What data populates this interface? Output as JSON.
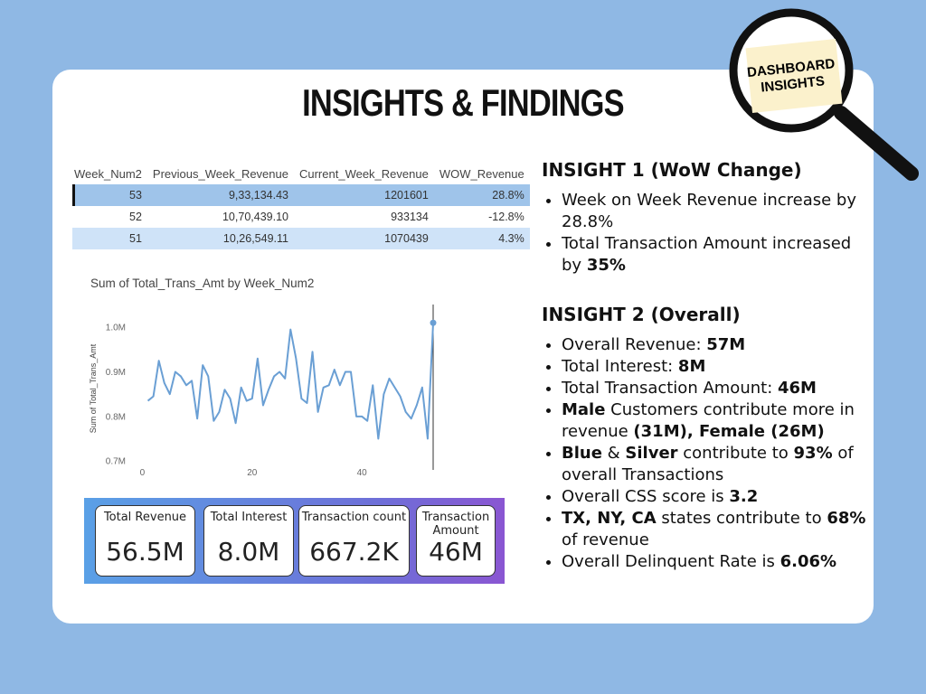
{
  "badge": {
    "line1": "DASHBOARD",
    "line2": "INSIGHTS"
  },
  "title": "INSIGHTS & FINDINGS",
  "table": {
    "header": [
      "Week_Num2",
      "Previous_Week_Revenue",
      "Current_Week_Revenue",
      "WOW_Revenue"
    ],
    "rows": [
      [
        "53",
        "9,33,134.43",
        "1201601",
        "28.8%"
      ],
      [
        "52",
        "10,70,439.10",
        "933134",
        "-12.8%"
      ],
      [
        "51",
        "10,26,549.11",
        "1070439",
        "4.3%"
      ]
    ]
  },
  "chart_data": {
    "type": "line",
    "title": "Sum of Total_Trans_Amt by Week_Num2",
    "y_label": "Sum of Total_Trans_Amt",
    "x": [
      1,
      2,
      3,
      4,
      5,
      6,
      7,
      8,
      9,
      10,
      11,
      12,
      13,
      14,
      15,
      16,
      17,
      18,
      19,
      20,
      21,
      22,
      23,
      24,
      25,
      26,
      27,
      28,
      29,
      30,
      31,
      32,
      33,
      34,
      35,
      36,
      37,
      38,
      39,
      40,
      41,
      42,
      43,
      44,
      45,
      46,
      47,
      48,
      49,
      50,
      51,
      52,
      53
    ],
    "series": [
      {
        "name": "Sum of Total_Trans_Amt",
        "color": "#6a9fd4",
        "values": [
          835000,
          845000,
          925000,
          875000,
          850000,
          900000,
          890000,
          870000,
          880000,
          795000,
          915000,
          890000,
          790000,
          810000,
          860000,
          840000,
          785000,
          865000,
          835000,
          840000,
          930000,
          825000,
          860000,
          890000,
          900000,
          885000,
          995000,
          930000,
          840000,
          830000,
          945000,
          810000,
          865000,
          870000,
          905000,
          870000,
          900000,
          900000,
          800000,
          800000,
          790000,
          870000,
          750000,
          850000,
          885000,
          865000,
          845000,
          810000,
          795000,
          825000,
          865000,
          750000,
          1010000
        ]
      }
    ],
    "xlim": [
      -7,
      68
    ],
    "xticks": [
      0,
      20,
      40
    ],
    "ylim": [
      680000,
      1045000
    ],
    "yticks": [
      {
        "value": 700000,
        "label": "0.7M"
      },
      {
        "value": 800000,
        "label": "0.8M"
      },
      {
        "value": 900000,
        "label": "0.9M"
      },
      {
        "value": 1000000,
        "label": "1.0M"
      }
    ],
    "grid": false
  },
  "kpis": [
    {
      "label": "Total Revenue",
      "value": "56.5M"
    },
    {
      "label": "Total Interest",
      "value": "8.0M"
    },
    {
      "label": "Transaction count",
      "value": "667.2K"
    },
    {
      "label": "Transaction Amount",
      "value": "46M"
    }
  ],
  "insights": [
    {
      "heading": "INSIGHT 1 (WoW Change)",
      "bullets": [
        [
          {
            "text": "Week on Week Revenue increase by 28.8%",
            "bold": false
          }
        ],
        [
          {
            "text": "Total Transaction Amount increased by ",
            "bold": false
          },
          {
            "text": "35%",
            "bold": true
          }
        ]
      ]
    },
    {
      "heading": "INSIGHT 2 (Overall)",
      "bullets": [
        [
          {
            "text": "Overall Revenue: ",
            "bold": false
          },
          {
            "text": "57M",
            "bold": true
          }
        ],
        [
          {
            "text": "Total Interest: ",
            "bold": false
          },
          {
            "text": "8M",
            "bold": true
          }
        ],
        [
          {
            "text": "Total Transaction Amount: ",
            "bold": false
          },
          {
            "text": "46M",
            "bold": true
          }
        ],
        [
          {
            "text": "Male",
            "bold": true
          },
          {
            "text": " Customers contribute more in revenue ",
            "bold": false
          },
          {
            "text": "(31M), Female (26M)",
            "bold": true
          }
        ],
        [
          {
            "text": "Blue",
            "bold": true
          },
          {
            "text": " & ",
            "bold": false
          },
          {
            "text": "Silver",
            "bold": true
          },
          {
            "text": " contribute to ",
            "bold": false
          },
          {
            "text": "93%",
            "bold": true
          },
          {
            "text": " of overall Transactions",
            "bold": false
          }
        ],
        [
          {
            "text": "Overall CSS score is ",
            "bold": false
          },
          {
            "text": "3.2",
            "bold": true
          }
        ],
        [
          {
            "text": "TX, NY, CA",
            "bold": true
          },
          {
            "text": " states contribute to ",
            "bold": false
          },
          {
            "text": "68%",
            "bold": true
          },
          {
            "text": " of revenue",
            "bold": false
          }
        ],
        [
          {
            "text": "Overall Delinquent Rate is ",
            "bold": false
          },
          {
            "text": "6.06%",
            "bold": true
          }
        ]
      ]
    }
  ]
}
